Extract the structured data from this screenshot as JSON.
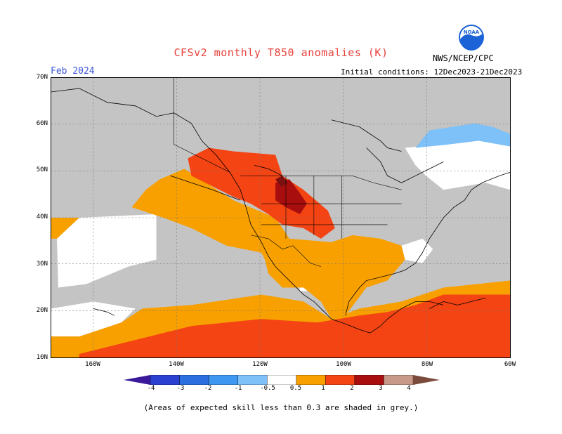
{
  "title": "CFSv2 monthly T850 anomalies (K)",
  "month": "Feb 2024",
  "initial_conditions": "Initial conditions: 12Dec2023-21Dec2023",
  "agency": "NWS/NCEP/CPC",
  "logo_text": "NOAA",
  "lat_labels": [
    "70N",
    "60N",
    "50N",
    "40N",
    "30N",
    "20N",
    "10N"
  ],
  "lon_labels": [
    "160W",
    "140W",
    "120W",
    "100W",
    "80W",
    "60W"
  ],
  "colorbar": {
    "labels": [
      "-4",
      "-3",
      "-2",
      "-1",
      "-0.5",
      "0.5",
      "1",
      "2",
      "3",
      "4"
    ],
    "colors": [
      "#3a1a9a",
      "#2b3fd0",
      "#2a6ee0",
      "#3e97f0",
      "#7ec0f8",
      "#ffffff",
      "#f7a000",
      "#f44414",
      "#a80e0e",
      "#c89888",
      "#7a4a3a"
    ]
  },
  "note": "(Areas of expected skill less than 0.3 are shaded in grey.)",
  "colors": {
    "grey": "#c4c4c4",
    "orange": "#f7a000",
    "red": "#f44414",
    "darkred": "#a80e0e",
    "lightblue": "#7ec0f8",
    "white": "#ffffff"
  }
}
